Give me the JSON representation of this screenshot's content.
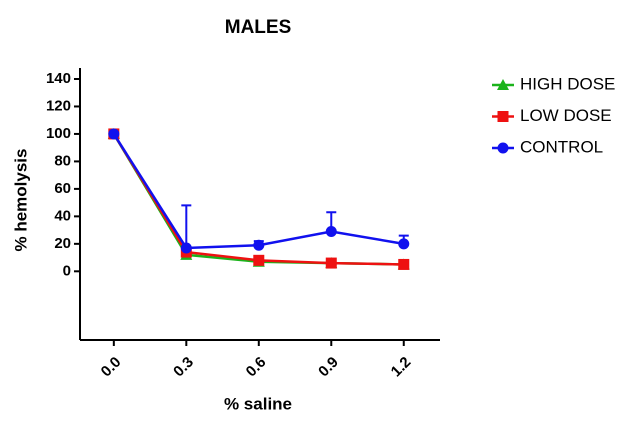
{
  "chart_data": {
    "type": "line",
    "title": "MALES",
    "x_label": "% saline",
    "y_label": "% hemolysis",
    "x": [
      0,
      0.3,
      0.6,
      0.9,
      1.2
    ],
    "series": [
      {
        "name": "HIGH DOSE",
        "color": "#1bb31b",
        "marker": "triangle",
        "values": [
          100,
          12,
          7,
          6,
          5
        ]
      },
      {
        "name": "LOW DOSE",
        "color": "#ee1111",
        "marker": "square",
        "values": [
          100,
          14,
          8,
          6,
          5
        ]
      },
      {
        "name": "CONTROL",
        "color": "#1111ee",
        "marker": "circle",
        "values": [
          100,
          17,
          19,
          29,
          20
        ],
        "errors": [
          1,
          31,
          3,
          14,
          6
        ]
      }
    ],
    "xlim": [
      -0.14,
      1.35
    ],
    "xticks": [
      {
        "value": 0,
        "label": "0.0"
      },
      0.3,
      0.6,
      0.9,
      1.2
    ],
    "ylim": [
      -50,
      148
    ],
    "yticks": [
      0,
      20,
      40,
      60,
      80,
      100,
      120,
      140
    ],
    "legend": "right"
  }
}
